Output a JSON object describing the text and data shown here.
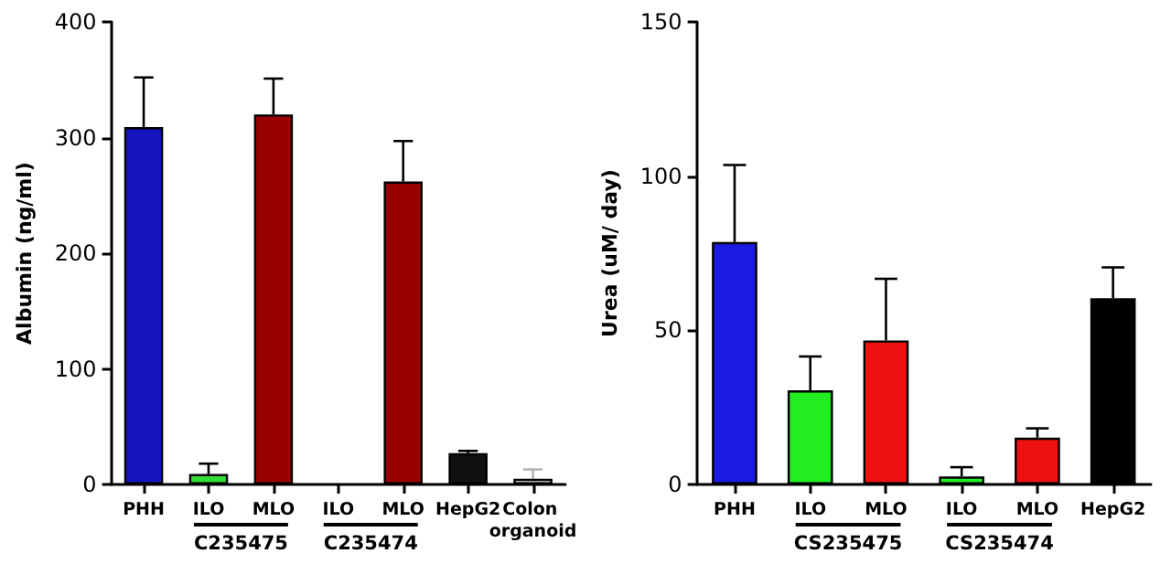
{
  "chart_data": [
    {
      "type": "bar",
      "ylabel": "Albumin (ng/ml)",
      "categories": [
        "PHH",
        "ILO",
        "MLO",
        "ILO",
        "MLO",
        "HepG2",
        "Colon organoid"
      ],
      "values": [
        309,
        9,
        320,
        null,
        262,
        27,
        5
      ],
      "errors": [
        43,
        9,
        31,
        null,
        35,
        2,
        8
      ],
      "colors": [
        "#1515c0",
        "#33dd33",
        "#990000",
        null,
        "#990000",
        "#111111",
        "#b3b3b3"
      ],
      "ylim": [
        0,
        400
      ],
      "yticks": [
        0,
        100,
        200,
        300,
        400
      ],
      "grid": false,
      "annotations": [
        "C235475",
        "C235474"
      ]
    },
    {
      "type": "bar",
      "ylabel": "Urea (uM/ day)",
      "categories": [
        "PHH",
        "ILO",
        "MLO",
        "ILO",
        "MLO",
        "HepG2"
      ],
      "values": [
        78.6,
        30.5,
        46.7,
        2.6,
        15.2,
        60.4
      ],
      "errors": [
        25,
        11,
        20,
        3,
        3,
        10
      ],
      "colors": [
        "#1a1ae0",
        "#22ee22",
        "#ee1111",
        "#22ee22",
        "#ee1111",
        "#000000"
      ],
      "ylim": [
        0,
        150
      ],
      "yticks": [
        0,
        50,
        100,
        150
      ],
      "grid": false,
      "annotations": [
        "CS235475",
        "CS235474"
      ]
    }
  ]
}
